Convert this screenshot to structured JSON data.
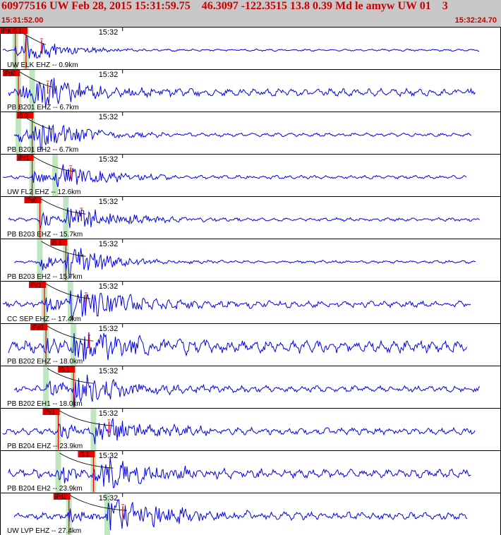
{
  "header": {
    "title": "60977516 UW Feb 28, 2015 15:31:59.75    46.3097 -122.3515 13.8 0.39 Md le amyw UW 01    3",
    "start_time": "15:31:52.00",
    "end_time": "15:32:24.70"
  },
  "colors": {
    "header_bg": "#c8c8c8",
    "header_text": "#cc0000",
    "waveform": "#0000ee",
    "pick": "#ee0000",
    "window": "#bfe6bf",
    "frame": "#000000"
  },
  "time_axis": {
    "start_seconds": 52.0,
    "end_seconds": 84.7
  },
  "traces": [
    {
      "label": "UW ELK EHZ -- 0.9km",
      "minute_label": "15:32",
      "p_pick": "iPd0",
      "s_pick": "iS 1",
      "p_time": 53.0,
      "s_time": 53.7,
      "amp": 0.6,
      "noise": 0.06,
      "decay": 2.5,
      "late_spike": true
    },
    {
      "label": "PB B201 EHZ -- 6.7km",
      "minute_label": "15:32",
      "p_pick": "iPd0",
      "s_pick": "",
      "p_time": 53.2,
      "s_time": 54.1,
      "amp": 0.85,
      "noise": 0.22,
      "decay": 3.5,
      "late_spike": true
    },
    {
      "label": "PB B201 EH2 -- 6.7km",
      "minute_label": "15:32",
      "p_pick": "",
      "s_pick": "iS 0",
      "p_time": 53.2,
      "s_time": 54.1,
      "amp": 0.8,
      "noise": 0.1,
      "decay": 3.0,
      "late_spike": false
    },
    {
      "label": "UW FL2 EHZ -- 12.6km",
      "minute_label": "15:32",
      "p_pick": "iPc1",
      "s_pick": "",
      "p_time": 54.1,
      "s_time": 55.6,
      "amp": 0.7,
      "noise": 0.1,
      "decay": 3.0,
      "late_spike": true
    },
    {
      "label": "PB B203 EHZ -- 15.7km",
      "minute_label": "15:32",
      "p_pick": "iPd0",
      "s_pick": "",
      "p_time": 54.6,
      "s_time": 56.3,
      "amp": 0.75,
      "noise": 0.1,
      "decay": 3.0,
      "late_spike": true
    },
    {
      "label": "PB B203 EH2 -- 15.7km",
      "minute_label": "15:32",
      "p_pick": "",
      "s_pick": "iS 1",
      "p_time": 54.6,
      "s_time": 56.3,
      "amp": 0.9,
      "noise": 0.08,
      "decay": 2.5,
      "late_spike": false
    },
    {
      "label": "CC SEP EHZ -- 17.4km",
      "minute_label": "15:32",
      "p_pick": "iPc1",
      "s_pick": "",
      "p_time": 54.9,
      "s_time": 56.6,
      "amp": 0.9,
      "noise": 0.18,
      "decay": 4.0,
      "late_spike": true
    },
    {
      "label": "PB B202 EHZ -- 18.0km",
      "minute_label": "15:32",
      "p_pick": "iPd0",
      "s_pick": "",
      "p_time": 55.0,
      "s_time": 56.8,
      "amp": 0.8,
      "noise": 0.35,
      "decay": 4.5,
      "late_spike": true
    },
    {
      "label": "PB B202 EH1 -- 18.0km",
      "minute_label": "15:32",
      "p_pick": "",
      "s_pick": "iS 1",
      "p_time": 55.0,
      "s_time": 56.8,
      "amp": 0.85,
      "noise": 0.18,
      "decay": 3.5,
      "late_spike": false
    },
    {
      "label": "PB B204 EHZ -- 23.9km",
      "minute_label": "15:32",
      "p_pick": "iPc1",
      "s_pick": "",
      "p_time": 55.8,
      "s_time": 58.1,
      "amp": 0.75,
      "noise": 0.2,
      "decay": 3.5,
      "late_spike": true
    },
    {
      "label": "PB B204 EH2 -- 23.9km",
      "minute_label": "15:32",
      "p_pick": "",
      "s_pick": "iS 1",
      "p_time": 55.8,
      "s_time": 58.1,
      "amp": 0.8,
      "noise": 0.25,
      "decay": 4.0,
      "late_spike": false
    },
    {
      "label": "UW LVP EHZ -- 27.4km",
      "minute_label": "15:32",
      "p_pick": "iPd1",
      "s_pick": "",
      "p_time": 56.5,
      "s_time": 59.0,
      "amp": 0.85,
      "noise": 0.22,
      "decay": 4.0,
      "late_spike": true
    }
  ]
}
